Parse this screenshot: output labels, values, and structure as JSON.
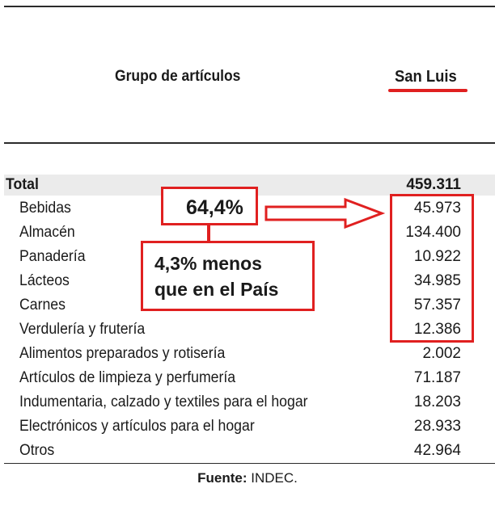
{
  "header": {
    "group_label": "Grupo de artículos",
    "region_label": "San Luis"
  },
  "rows": [
    {
      "label": "Total",
      "value": "459.311"
    },
    {
      "label": "Bebidas",
      "value": "45.973"
    },
    {
      "label": "Almacén",
      "value": "134.400"
    },
    {
      "label": "Panadería",
      "value": "10.922"
    },
    {
      "label": "Lácteos",
      "value": "34.985"
    },
    {
      "label": "Carnes",
      "value": "57.357"
    },
    {
      "label": "Verdulería y frutería",
      "value": "12.386"
    },
    {
      "label": "Alimentos preparados y rotisería",
      "value": "2.002"
    },
    {
      "label": "Artículos de limpieza y perfumería",
      "value": "71.187"
    },
    {
      "label": "Indumentaria, calzado y textiles para el hogar",
      "value": "18.203"
    },
    {
      "label": "Electrónicos y artículos para el hogar",
      "value": "28.933"
    },
    {
      "label": "Otros",
      "value": "42.964"
    }
  ],
  "annotations": {
    "share_percent": "64,4%",
    "difference_line1": "4,3% menos",
    "difference_line2": "que en el País",
    "highlight_color": "#e02020"
  },
  "source": {
    "label": "Fuente:",
    "value": "INDEC."
  }
}
